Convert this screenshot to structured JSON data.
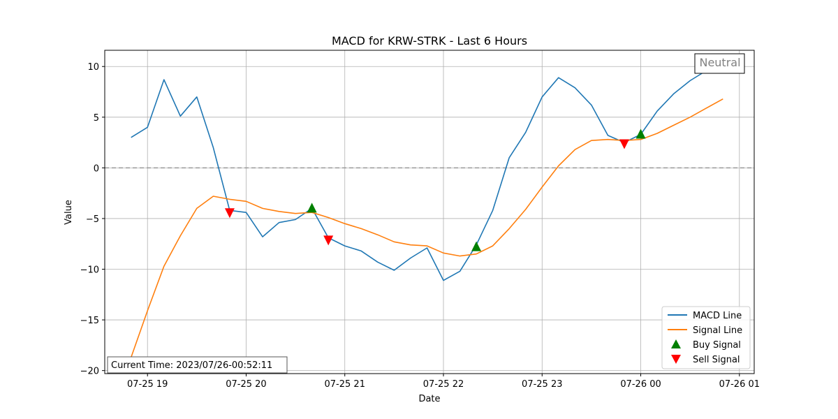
{
  "chart_data": {
    "type": "line",
    "title": "MACD for KRW-STRK - Last 6 Hours",
    "xlabel": "Date",
    "ylabel": "Value",
    "xlim": [
      "2023-07-25 18:34",
      "2023-07-26 01:09"
    ],
    "ylim": [
      -20.3,
      11.6
    ],
    "grid": true,
    "legend_position": "bottom-right",
    "x_tick_labels": [
      "07-25 19",
      "07-25 20",
      "07-25 21",
      "07-25 22",
      "07-25 23",
      "07-26 00",
      "07-26 01"
    ],
    "y_tick_labels": [
      "−20",
      "−15",
      "−10",
      "−5",
      "0",
      "5",
      "10"
    ],
    "zero_line": {
      "value": 0,
      "style": "dashed",
      "color": "#999999"
    },
    "status_box": {
      "text": "Neutral",
      "color": "#808080"
    },
    "current_time_label": "Current Time: 2023/07/26-00:52:11",
    "x": [
      "2023-07-25 18:50",
      "2023-07-25 19:00",
      "2023-07-25 19:10",
      "2023-07-25 19:20",
      "2023-07-25 19:30",
      "2023-07-25 19:40",
      "2023-07-25 19:50",
      "2023-07-25 20:00",
      "2023-07-25 20:10",
      "2023-07-25 20:20",
      "2023-07-25 20:30",
      "2023-07-25 20:40",
      "2023-07-25 20:50",
      "2023-07-25 21:00",
      "2023-07-25 21:10",
      "2023-07-25 21:20",
      "2023-07-25 21:30",
      "2023-07-25 21:40",
      "2023-07-25 21:50",
      "2023-07-25 22:00",
      "2023-07-25 22:10",
      "2023-07-25 22:20",
      "2023-07-25 22:30",
      "2023-07-25 22:40",
      "2023-07-25 22:50",
      "2023-07-25 23:00",
      "2023-07-25 23:10",
      "2023-07-25 23:20",
      "2023-07-25 23:30",
      "2023-07-25 23:40",
      "2023-07-25 23:50",
      "2023-07-26 00:00",
      "2023-07-26 00:10",
      "2023-07-26 00:20",
      "2023-07-26 00:30",
      "2023-07-26 00:40",
      "2023-07-26 00:50"
    ],
    "series": [
      {
        "name": "MACD Line",
        "color": "#1f77b4",
        "values": [
          3.0,
          4.0,
          8.7,
          5.1,
          7.0,
          2.0,
          -4.2,
          -4.4,
          -6.8,
          -5.4,
          -5.1,
          -4.0,
          -6.9,
          -7.7,
          -8.2,
          -9.3,
          -10.1,
          -8.9,
          -7.9,
          -11.1,
          -10.2,
          -7.6,
          -4.2,
          1.0,
          3.5,
          7.0,
          8.9,
          7.9,
          6.2,
          3.2,
          2.5,
          3.3,
          5.6,
          7.3,
          8.6,
          9.6,
          10.2
        ]
      },
      {
        "name": "Signal Line",
        "color": "#ff7f0e",
        "values": [
          -18.7,
          -14.1,
          -9.7,
          -6.7,
          -4.0,
          -2.8,
          -3.1,
          -3.3,
          -4.0,
          -4.3,
          -4.5,
          -4.4,
          -4.9,
          -5.5,
          -6.0,
          -6.6,
          -7.3,
          -7.6,
          -7.7,
          -8.4,
          -8.7,
          -8.5,
          -7.7,
          -6.0,
          -4.1,
          -1.9,
          0.2,
          1.8,
          2.7,
          2.8,
          2.7,
          2.8,
          3.4,
          4.2,
          5.0,
          5.9,
          6.8
        ]
      }
    ],
    "buy_signals": {
      "name": "Buy Signal",
      "color": "#008000",
      "x": [
        "2023-07-25 20:40",
        "2023-07-25 22:20",
        "2023-07-26 00:00"
      ],
      "y": [
        -4.0,
        -7.8,
        3.3
      ]
    },
    "sell_signals": {
      "name": "Sell Signal",
      "color": "#ff0000",
      "x": [
        "2023-07-25 19:50",
        "2023-07-25 20:50",
        "2023-07-25 23:50"
      ],
      "y": [
        -4.4,
        -7.1,
        2.4
      ]
    }
  }
}
